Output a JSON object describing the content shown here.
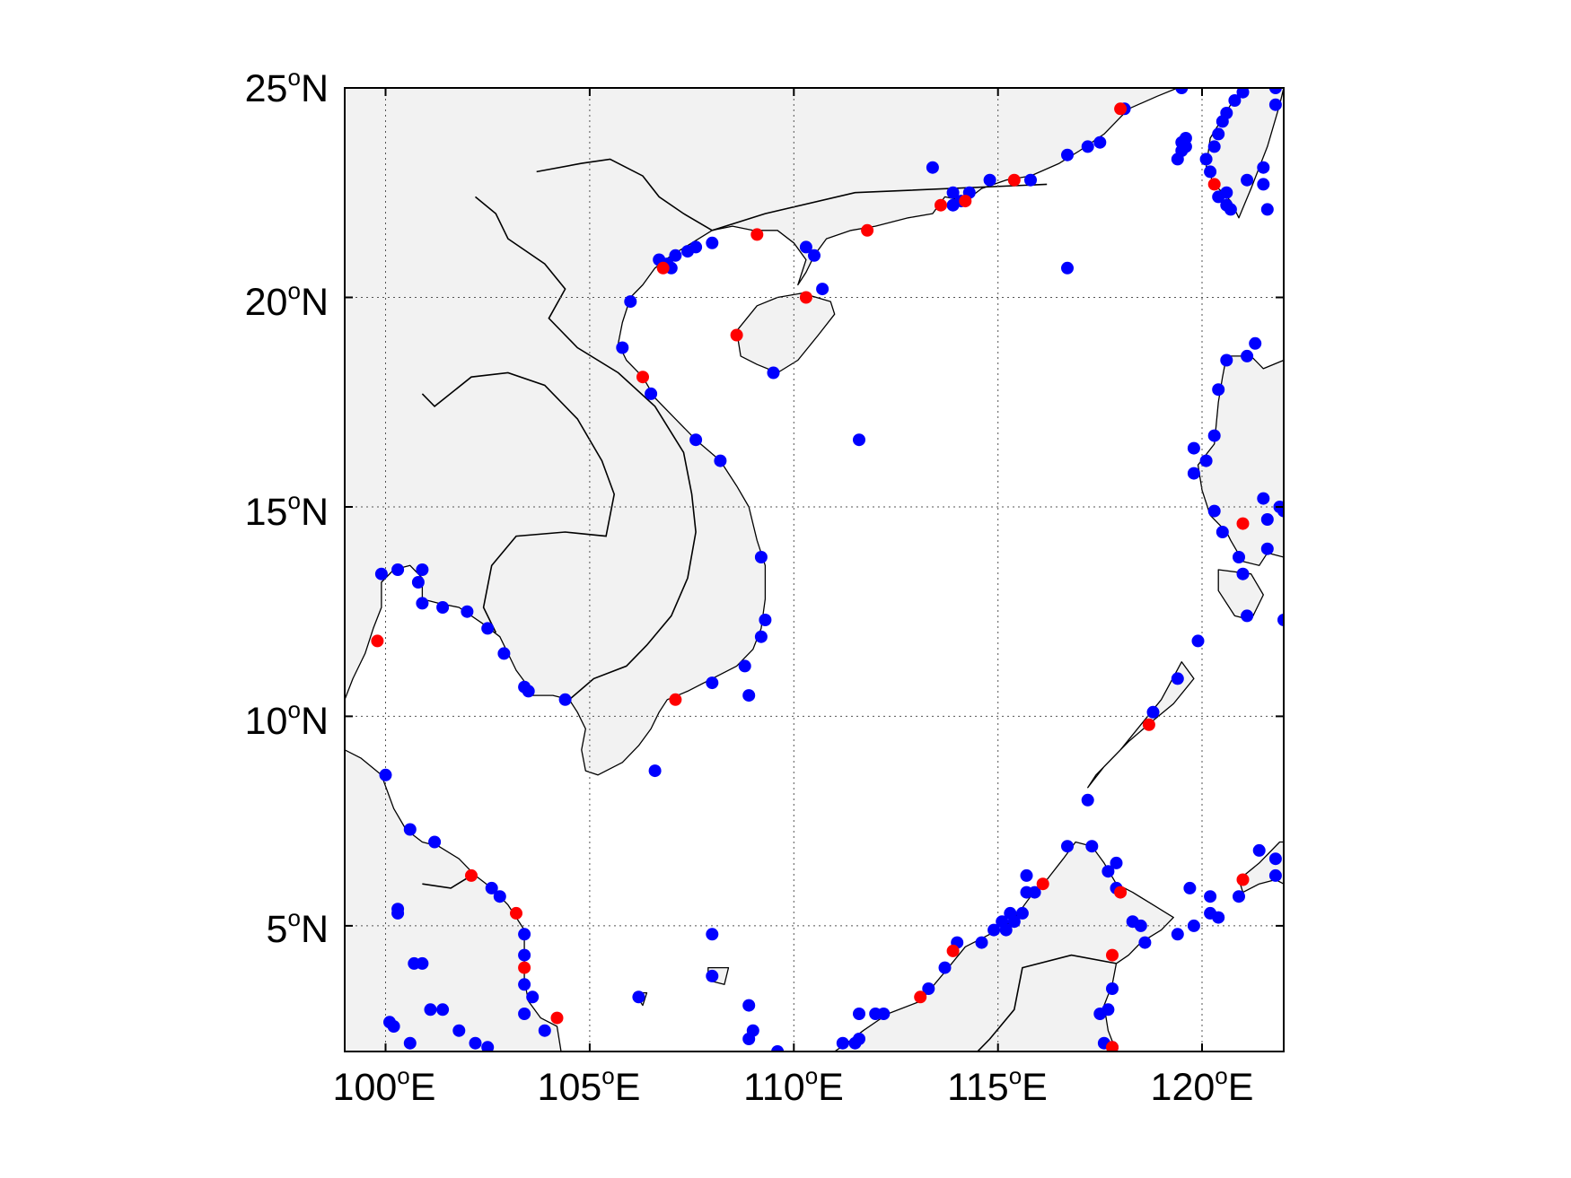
{
  "map": {
    "lon_range": [
      99,
      122
    ],
    "lat_range": [
      2,
      25
    ],
    "grid": true,
    "land_color": "#f2f2f2",
    "coast_color": "#000000",
    "blue_color": "#0000ff",
    "red_color": "#ff0000"
  },
  "x_ticks": [
    {
      "value": 100,
      "num": "100",
      "deg": "o",
      "hemi": "E"
    },
    {
      "value": 105,
      "num": "105",
      "deg": "o",
      "hemi": "E"
    },
    {
      "value": 110,
      "num": "110",
      "deg": "o",
      "hemi": "E"
    },
    {
      "value": 115,
      "num": "115",
      "deg": "o",
      "hemi": "E"
    },
    {
      "value": 120,
      "num": "120",
      "deg": "o",
      "hemi": "E"
    }
  ],
  "y_ticks": [
    {
      "value": 25,
      "num": "25",
      "deg": "o",
      "hemi": "N"
    },
    {
      "value": 20,
      "num": "20",
      "deg": "o",
      "hemi": "N"
    },
    {
      "value": 15,
      "num": "15",
      "deg": "o",
      "hemi": "N"
    },
    {
      "value": 10,
      "num": "10",
      "deg": "o",
      "hemi": "N"
    },
    {
      "value": 5,
      "num": "5",
      "deg": "o",
      "hemi": "N"
    }
  ],
  "chart_data": {
    "type": "scatter",
    "x_label": "",
    "y_label": "",
    "xlim": [
      99,
      122
    ],
    "ylim": [
      2,
      25
    ],
    "series": [
      {
        "color": "#0000ff",
        "points": [
          [
            106.0,
            19.9
          ],
          [
            105.8,
            18.8
          ],
          [
            106.5,
            17.7
          ],
          [
            107.6,
            16.6
          ],
          [
            108.2,
            16.1
          ],
          [
            109.2,
            13.8
          ],
          [
            109.3,
            12.3
          ],
          [
            109.2,
            11.9
          ],
          [
            108.8,
            11.2
          ],
          [
            108.0,
            10.8
          ],
          [
            108.9,
            10.5
          ],
          [
            106.6,
            8.7
          ],
          [
            106.7,
            20.9
          ],
          [
            107.1,
            21.0
          ],
          [
            106.9,
            20.8
          ],
          [
            107.4,
            21.1
          ],
          [
            107.6,
            21.2
          ],
          [
            108.0,
            21.3
          ],
          [
            107.0,
            20.7
          ],
          [
            110.3,
            21.2
          ],
          [
            110.5,
            21.0
          ],
          [
            110.7,
            20.2
          ],
          [
            109.5,
            18.2
          ],
          [
            111.6,
            16.6
          ],
          [
            116.7,
            20.7
          ],
          [
            113.4,
            23.1
          ],
          [
            113.9,
            22.5
          ],
          [
            114.1,
            22.3
          ],
          [
            113.9,
            22.2
          ],
          [
            114.3,
            22.5
          ],
          [
            114.8,
            22.8
          ],
          [
            115.8,
            22.8
          ],
          [
            116.7,
            23.4
          ],
          [
            117.2,
            23.6
          ],
          [
            117.5,
            23.7
          ],
          [
            118.1,
            24.5
          ],
          [
            119.5,
            25.0
          ],
          [
            119.4,
            23.3
          ],
          [
            119.6,
            23.6
          ],
          [
            119.5,
            23.5
          ],
          [
            119.6,
            23.8
          ],
          [
            119.5,
            23.7
          ],
          [
            120.2,
            23.0
          ],
          [
            120.1,
            23.3
          ],
          [
            120.3,
            23.6
          ],
          [
            120.4,
            23.9
          ],
          [
            120.5,
            24.2
          ],
          [
            120.6,
            24.4
          ],
          [
            120.8,
            24.7
          ],
          [
            121.0,
            24.9
          ],
          [
            121.8,
            25.0
          ],
          [
            121.8,
            24.6
          ],
          [
            121.1,
            22.8
          ],
          [
            121.5,
            23.1
          ],
          [
            121.5,
            22.7
          ],
          [
            121.6,
            22.1
          ],
          [
            120.6,
            22.5
          ],
          [
            120.4,
            22.4
          ],
          [
            120.7,
            22.1
          ],
          [
            120.6,
            22.2
          ],
          [
            120.6,
            18.5
          ],
          [
            121.1,
            18.6
          ],
          [
            121.3,
            18.9
          ],
          [
            120.4,
            17.8
          ],
          [
            120.3,
            16.7
          ],
          [
            120.1,
            16.1
          ],
          [
            119.8,
            16.4
          ],
          [
            119.8,
            15.8
          ],
          [
            120.3,
            14.9
          ],
          [
            120.5,
            14.4
          ],
          [
            120.9,
            13.8
          ],
          [
            121.0,
            13.4
          ],
          [
            121.5,
            15.2
          ],
          [
            121.6,
            14.7
          ],
          [
            121.6,
            14.0
          ],
          [
            121.9,
            15.0
          ],
          [
            122.0,
            14.9
          ],
          [
            121.1,
            12.4
          ],
          [
            122.0,
            12.3
          ],
          [
            119.9,
            11.8
          ],
          [
            119.4,
            10.9
          ],
          [
            118.8,
            10.1
          ],
          [
            117.2,
            8.0
          ],
          [
            116.7,
            6.9
          ],
          [
            117.3,
            6.9
          ],
          [
            117.7,
            6.3
          ],
          [
            117.9,
            6.5
          ],
          [
            117.9,
            5.9
          ],
          [
            118.3,
            5.1
          ],
          [
            118.5,
            5.0
          ],
          [
            118.6,
            4.6
          ],
          [
            119.4,
            4.8
          ],
          [
            119.8,
            5.0
          ],
          [
            119.7,
            5.9
          ],
          [
            120.2,
            5.7
          ],
          [
            120.2,
            5.3
          ],
          [
            120.4,
            5.2
          ],
          [
            120.9,
            5.7
          ],
          [
            121.4,
            6.8
          ],
          [
            121.8,
            6.6
          ],
          [
            121.8,
            6.2
          ],
          [
            115.7,
            6.2
          ],
          [
            115.7,
            5.8
          ],
          [
            115.9,
            5.8
          ],
          [
            115.6,
            5.3
          ],
          [
            115.4,
            5.1
          ],
          [
            115.2,
            4.9
          ],
          [
            114.9,
            4.9
          ],
          [
            115.1,
            5.1
          ],
          [
            115.3,
            5.3
          ],
          [
            114.6,
            4.6
          ],
          [
            114.0,
            4.6
          ],
          [
            113.7,
            4.0
          ],
          [
            113.3,
            3.5
          ],
          [
            112.2,
            2.9
          ],
          [
            112.0,
            2.9
          ],
          [
            111.6,
            2.3
          ],
          [
            111.6,
            2.9
          ],
          [
            111.5,
            2.2
          ],
          [
            111.2,
            2.2
          ],
          [
            117.8,
            3.5
          ],
          [
            117.7,
            3.0
          ],
          [
            117.5,
            2.9
          ],
          [
            117.6,
            2.2
          ],
          [
            117.8,
            2.1
          ],
          [
            108.0,
            4.8
          ],
          [
            108.0,
            3.8
          ],
          [
            108.9,
            3.1
          ],
          [
            109.0,
            2.5
          ],
          [
            108.9,
            2.3
          ],
          [
            109.6,
            2.0
          ],
          [
            106.2,
            3.3
          ],
          [
            99.9,
            13.4
          ],
          [
            100.3,
            13.5
          ],
          [
            100.9,
            13.5
          ],
          [
            100.8,
            13.2
          ],
          [
            100.9,
            12.7
          ],
          [
            101.4,
            12.6
          ],
          [
            102.0,
            12.5
          ],
          [
            102.5,
            12.1
          ],
          [
            102.9,
            11.5
          ],
          [
            103.4,
            10.7
          ],
          [
            103.5,
            10.6
          ],
          [
            104.4,
            10.4
          ],
          [
            100.0,
            8.6
          ],
          [
            100.6,
            7.3
          ],
          [
            101.2,
            7.0
          ],
          [
            102.6,
            5.9
          ],
          [
            102.8,
            5.7
          ],
          [
            103.4,
            4.8
          ],
          [
            103.4,
            4.3
          ],
          [
            103.4,
            3.6
          ],
          [
            103.6,
            3.3
          ],
          [
            103.4,
            2.9
          ],
          [
            103.9,
            2.5
          ],
          [
            100.3,
            5.4
          ],
          [
            100.3,
            5.3
          ],
          [
            100.7,
            4.1
          ],
          [
            100.9,
            4.1
          ],
          [
            101.1,
            3.0
          ],
          [
            101.4,
            3.0
          ],
          [
            101.8,
            2.5
          ],
          [
            100.1,
            2.7
          ],
          [
            100.2,
            2.6
          ],
          [
            100.6,
            2.2
          ],
          [
            102.2,
            2.2
          ],
          [
            102.5,
            2.1
          ]
        ]
      },
      {
        "color": "#ff0000",
        "points": [
          [
            106.8,
            20.7
          ],
          [
            109.1,
            21.5
          ],
          [
            111.8,
            21.6
          ],
          [
            113.6,
            22.2
          ],
          [
            114.2,
            22.3
          ],
          [
            115.4,
            22.8
          ],
          [
            118.0,
            24.5
          ],
          [
            120.3,
            22.7
          ],
          [
            110.3,
            20.0
          ],
          [
            108.6,
            19.1
          ],
          [
            106.3,
            18.1
          ],
          [
            107.1,
            10.4
          ],
          [
            99.8,
            11.8
          ],
          [
            121.0,
            14.6
          ],
          [
            118.7,
            9.8
          ],
          [
            116.1,
            6.0
          ],
          [
            118.0,
            5.8
          ],
          [
            121.0,
            6.1
          ],
          [
            117.8,
            4.3
          ],
          [
            113.9,
            4.4
          ],
          [
            113.1,
            3.3
          ],
          [
            117.8,
            2.1
          ],
          [
            102.1,
            6.2
          ],
          [
            103.2,
            5.3
          ],
          [
            103.4,
            4.0
          ],
          [
            104.2,
            2.8
          ]
        ]
      }
    ]
  }
}
